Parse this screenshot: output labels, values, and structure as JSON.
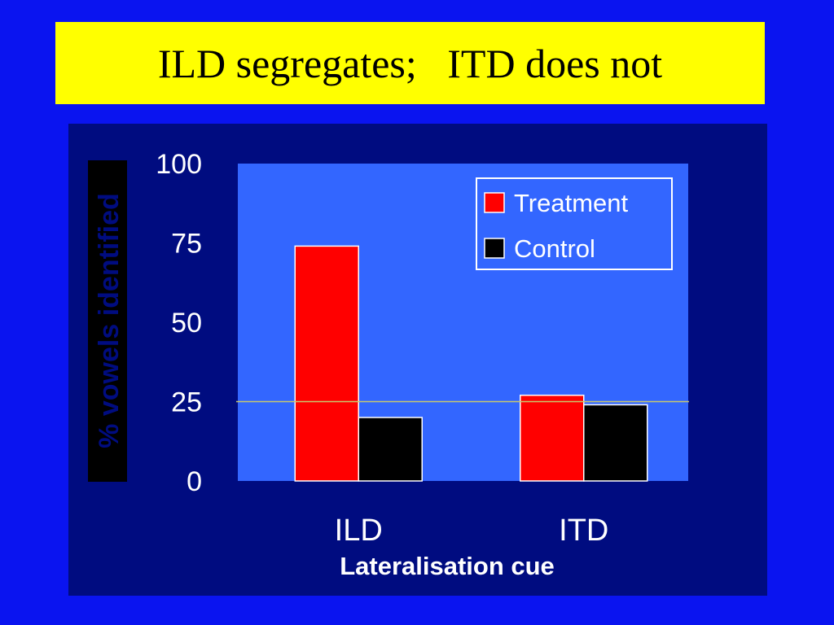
{
  "slide": {
    "title": "ILD segregates;   ITD does not"
  },
  "chart_data": {
    "type": "bar",
    "categories": [
      "ILD",
      "ITD"
    ],
    "series": [
      {
        "name": "Treatment",
        "values": [
          74,
          27
        ],
        "color": "#ff0000"
      },
      {
        "name": "Control",
        "values": [
          20,
          24
        ],
        "color": "#000000"
      }
    ],
    "ylim": [
      0,
      100
    ],
    "yticks": [
      0,
      25,
      50,
      75,
      100
    ],
    "xlabel": "Lateralisation cue",
    "ylabel": "% vowels identified",
    "reference_line": {
      "value": 25,
      "color": "#c8c86e"
    },
    "legend": "top-right",
    "plot_background": "#3366ff",
    "grid": false
  }
}
